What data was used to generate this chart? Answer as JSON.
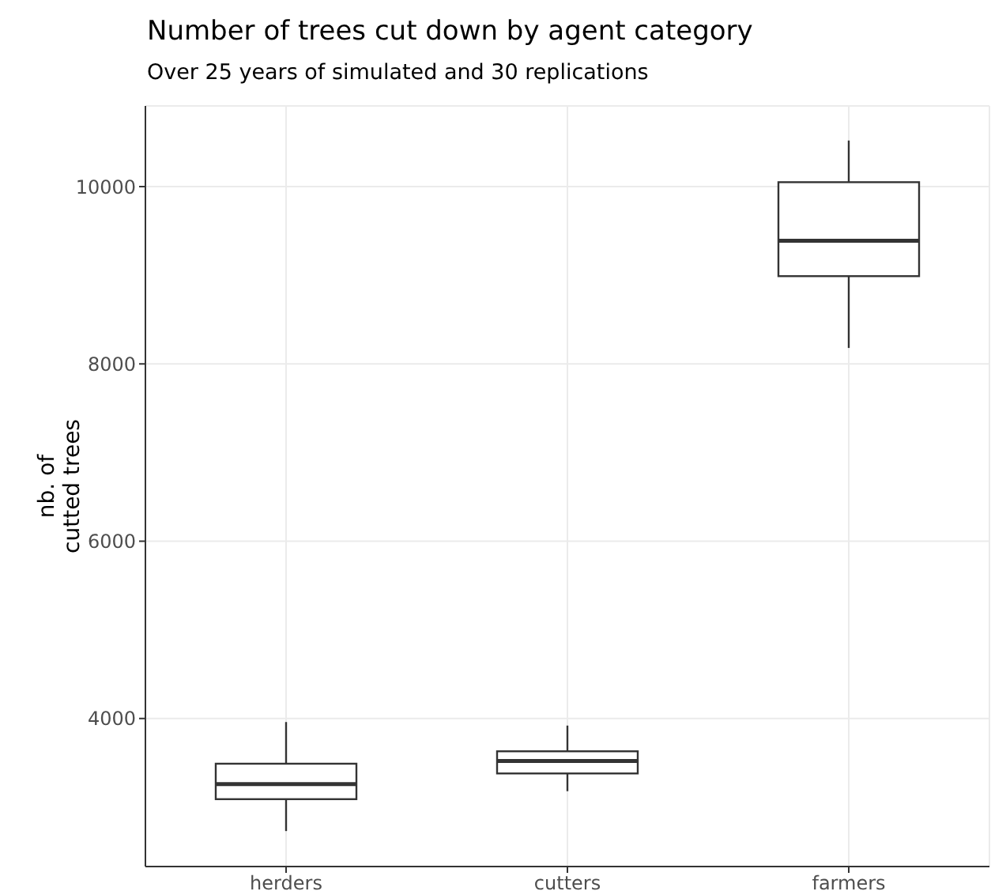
{
  "chart_data": {
    "type": "box",
    "title": "Number of trees cut down by agent category",
    "subtitle": "Over 25 years of simulated and 30 replications",
    "ylabel": "nb. of\ncutted trees",
    "categories": [
      "herders",
      "cutters",
      "farmers"
    ],
    "series": [
      {
        "color": "#333333",
        "boxes": [
          {
            "low": 2730,
            "q1": 3090,
            "median": 3260,
            "q3": 3490,
            "high": 3960
          },
          {
            "low": 3180,
            "q1": 3380,
            "median": 3520,
            "q3": 3630,
            "high": 3920
          },
          {
            "low": 8180,
            "q1": 8990,
            "median": 9390,
            "q3": 10050,
            "high": 10520
          }
        ]
      }
    ],
    "ylim": [
      2330,
      10910
    ],
    "yticks": [
      4000,
      6000,
      8000,
      10000
    ],
    "grid": true
  }
}
